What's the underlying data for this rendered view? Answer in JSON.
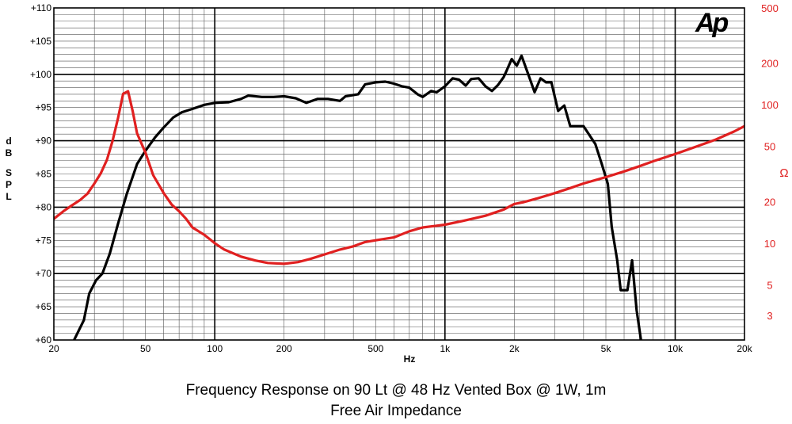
{
  "chart_data": {
    "type": "line",
    "logo": "Ap",
    "xlabel": "Hz",
    "ylabel_left": "dB SPL",
    "ylabel_right": "Ω",
    "x_scale": "log",
    "xlim": [
      20,
      20000
    ],
    "ylim_left": [
      60,
      110
    ],
    "ylim_right": [
      2,
      500
    ],
    "y_right_scale": "log",
    "grid": true,
    "x_ticks": [
      {
        "v": 20,
        "label": "20"
      },
      {
        "v": 50,
        "label": "50"
      },
      {
        "v": 100,
        "label": "100"
      },
      {
        "v": 200,
        "label": "200"
      },
      {
        "v": 500,
        "label": "500"
      },
      {
        "v": 1000,
        "label": "1k"
      },
      {
        "v": 2000,
        "label": "2k"
      },
      {
        "v": 5000,
        "label": "5k"
      },
      {
        "v": 10000,
        "label": "10k"
      },
      {
        "v": 20000,
        "label": "20k"
      }
    ],
    "y_left_ticks": [
      {
        "v": 60,
        "label": "+60"
      },
      {
        "v": 65,
        "label": "+65"
      },
      {
        "v": 70,
        "label": "+70"
      },
      {
        "v": 75,
        "label": "+75"
      },
      {
        "v": 80,
        "label": "+80"
      },
      {
        "v": 85,
        "label": "+85"
      },
      {
        "v": 90,
        "label": "+90"
      },
      {
        "v": 95,
        "label": "+95"
      },
      {
        "v": 100,
        "label": "+100"
      },
      {
        "v": 105,
        "label": "+105"
      },
      {
        "v": 110,
        "label": "+110"
      }
    ],
    "y_right_ticks": [
      {
        "v": 3,
        "label": "3"
      },
      {
        "v": 5,
        "label": "5"
      },
      {
        "v": 10,
        "label": "10"
      },
      {
        "v": 20,
        "label": "20"
      },
      {
        "v": 50,
        "label": "50"
      },
      {
        "v": 100,
        "label": "100"
      },
      {
        "v": 200,
        "label": "200"
      },
      {
        "v": 500,
        "label": "500"
      }
    ],
    "series": [
      {
        "id": "frequency-response",
        "axis": "left",
        "color": "#000000",
        "points": [
          [
            24.5,
            60
          ],
          [
            27,
            63
          ],
          [
            28.5,
            67
          ],
          [
            30.5,
            69
          ],
          [
            32.5,
            70
          ],
          [
            35,
            73
          ],
          [
            38,
            77.5
          ],
          [
            41.5,
            82
          ],
          [
            46,
            86.5
          ],
          [
            50,
            88.5
          ],
          [
            55,
            90.5
          ],
          [
            60,
            92
          ],
          [
            66,
            93.5
          ],
          [
            72,
            94.3
          ],
          [
            80,
            94.8
          ],
          [
            90,
            95.4
          ],
          [
            100,
            95.7
          ],
          [
            115,
            95.8
          ],
          [
            130,
            96.3
          ],
          [
            140,
            96.8
          ],
          [
            160,
            96.6
          ],
          [
            180,
            96.6
          ],
          [
            200,
            96.7
          ],
          [
            225,
            96.4
          ],
          [
            250,
            95.7
          ],
          [
            280,
            96.3
          ],
          [
            310,
            96.3
          ],
          [
            350,
            96.0
          ],
          [
            370,
            96.7
          ],
          [
            420,
            97.0
          ],
          [
            450,
            98.5
          ],
          [
            500,
            98.8
          ],
          [
            550,
            98.9
          ],
          [
            600,
            98.6
          ],
          [
            650,
            98.2
          ],
          [
            700,
            98.0
          ],
          [
            760,
            97.0
          ],
          [
            800,
            96.6
          ],
          [
            870,
            97.5
          ],
          [
            920,
            97.3
          ],
          [
            1000,
            98.2
          ],
          [
            1080,
            99.4
          ],
          [
            1150,
            99.2
          ],
          [
            1230,
            98.3
          ],
          [
            1300,
            99.3
          ],
          [
            1400,
            99.4
          ],
          [
            1500,
            98.2
          ],
          [
            1600,
            97.5
          ],
          [
            1700,
            98.4
          ],
          [
            1800,
            99.6
          ],
          [
            1850,
            100.5
          ],
          [
            1950,
            102.3
          ],
          [
            2050,
            101.3
          ],
          [
            2150,
            102.8
          ],
          [
            2300,
            100.0
          ],
          [
            2450,
            97.3
          ],
          [
            2600,
            99.4
          ],
          [
            2750,
            98.8
          ],
          [
            2900,
            98.8
          ],
          [
            3100,
            94.5
          ],
          [
            3300,
            95.3
          ],
          [
            3500,
            92.2
          ],
          [
            4000,
            92.2
          ],
          [
            4500,
            89.5
          ],
          [
            4800,
            86.5
          ],
          [
            5100,
            83.5
          ],
          [
            5300,
            77.0
          ],
          [
            5600,
            72.0
          ],
          [
            5800,
            67.5
          ],
          [
            6200,
            67.5
          ],
          [
            6500,
            72.0
          ],
          [
            6800,
            64.5
          ],
          [
            7100,
            60
          ]
        ]
      },
      {
        "id": "impedance",
        "axis": "right",
        "color": "#e02020",
        "points": [
          [
            20,
            15
          ],
          [
            22,
            17
          ],
          [
            24,
            18.8
          ],
          [
            26,
            20.5
          ],
          [
            28,
            22.8
          ],
          [
            30,
            27
          ],
          [
            32,
            32
          ],
          [
            34,
            40
          ],
          [
            36,
            55
          ],
          [
            38,
            80
          ],
          [
            40,
            120
          ],
          [
            42,
            125
          ],
          [
            44,
            90
          ],
          [
            46,
            62
          ],
          [
            50,
            45
          ],
          [
            54,
            31
          ],
          [
            60,
            23
          ],
          [
            65,
            19
          ],
          [
            70,
            17
          ],
          [
            75,
            15
          ],
          [
            80,
            13
          ],
          [
            90,
            11.5
          ],
          [
            100,
            10
          ],
          [
            110,
            9
          ],
          [
            130,
            8
          ],
          [
            150,
            7.5
          ],
          [
            170,
            7.2
          ],
          [
            200,
            7.1
          ],
          [
            230,
            7.3
          ],
          [
            260,
            7.7
          ],
          [
            300,
            8.3
          ],
          [
            350,
            9
          ],
          [
            400,
            9.5
          ],
          [
            450,
            10.2
          ],
          [
            500,
            10.5
          ],
          [
            600,
            11
          ],
          [
            700,
            12.2
          ],
          [
            800,
            13
          ],
          [
            900,
            13.3
          ],
          [
            1000,
            13.6
          ],
          [
            1200,
            14.5
          ],
          [
            1500,
            15.8
          ],
          [
            1800,
            17.5
          ],
          [
            2000,
            19.2
          ],
          [
            2200,
            19.8
          ],
          [
            2500,
            21
          ],
          [
            3000,
            23
          ],
          [
            3500,
            25
          ],
          [
            4000,
            27
          ],
          [
            5000,
            30
          ],
          [
            6000,
            33
          ],
          [
            7000,
            36
          ],
          [
            8000,
            39
          ],
          [
            10000,
            44
          ],
          [
            12000,
            49
          ],
          [
            15000,
            56
          ],
          [
            18000,
            64
          ],
          [
            20000,
            70
          ]
        ]
      }
    ]
  },
  "caption": {
    "line1": "Frequency Response on 90 Lt @ 48 Hz Vented Box @ 1W, 1m",
    "line2": "Free Air Impedance"
  }
}
